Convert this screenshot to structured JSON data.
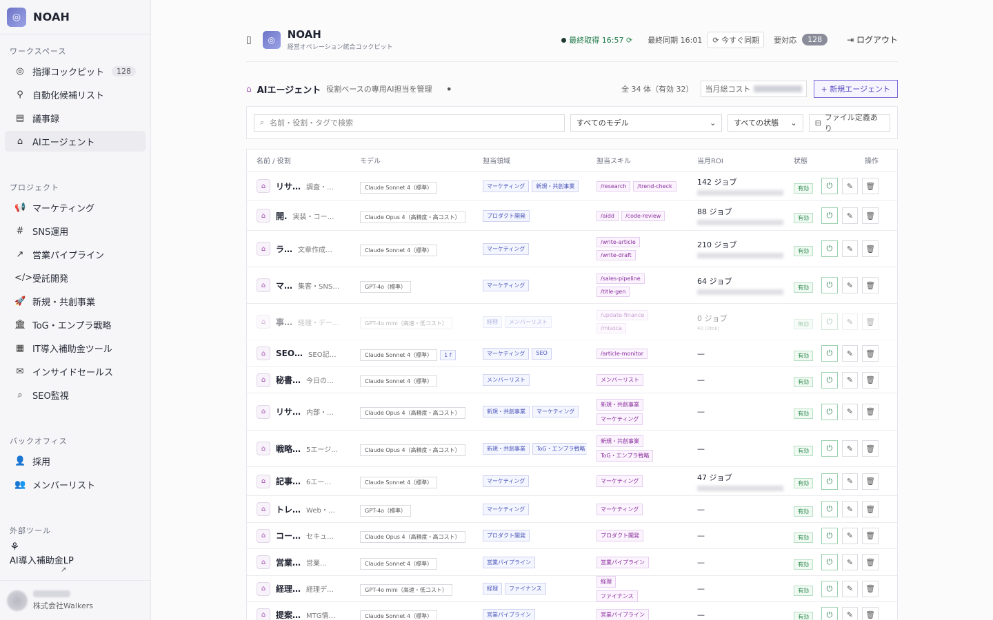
{
  "brand": "NOAH",
  "sidebar": {
    "workspace_label": "ワークスペース",
    "workspace": [
      {
        "label": "指揮コックピット",
        "icon": "◎",
        "count": "128"
      },
      {
        "label": "自動化候補リスト",
        "icon": "⚲",
        "count": ""
      },
      {
        "label": "議事録",
        "icon": "▤",
        "count": ""
      },
      {
        "label": "AIエージェント",
        "icon": "⌂",
        "count": ""
      }
    ],
    "project_label": "プロジェクト",
    "projects": [
      {
        "label": "マーケティング",
        "icon": "📢"
      },
      {
        "label": "SNS運用",
        "icon": "#"
      },
      {
        "label": "営業パイプライン",
        "icon": "↗"
      },
      {
        "label": "受託開発",
        "icon": "</>"
      },
      {
        "label": "新規・共創事業",
        "icon": "🚀"
      },
      {
        "label": "ToG・エンプラ戦略",
        "icon": "🏛"
      },
      {
        "label": "IT導入補助金ツール",
        "icon": "▦"
      },
      {
        "label": "インサイドセールス",
        "icon": "✉"
      },
      {
        "label": "SEO監視",
        "icon": "⌕"
      }
    ],
    "backoffice_label": "バックオフィス",
    "backoffice": [
      {
        "label": "採用",
        "icon": "👤"
      },
      {
        "label": "メンバーリスト",
        "icon": "👥"
      }
    ],
    "external_label": "外部ツール",
    "external_tool": "AI導入補助金LP",
    "user_org": "株式会社Walkers"
  },
  "top": {
    "title": "NOAH",
    "subtitle": "経営オペレーション統合コックピット",
    "last_fetch": "最終取得 16:57",
    "last_sync": "最終同期 16:01",
    "sync_now": "今すぐ同期",
    "needs_action": "要対応",
    "needs_count": "128",
    "logout": "ログアウト"
  },
  "section": {
    "title": "AIエージェント",
    "subtitle": "役割ベースの専用AI担当を管理",
    "total": "全 34 体（有効 32）",
    "cost_label": "当月総コスト",
    "new_button": "+ 新規エージェント"
  },
  "filters": {
    "search_placeholder": "名前・役割・タグで検索",
    "model_select": "すべてのモデル",
    "status_select": "すべての状態",
    "file_button": "ファイル定義あり"
  },
  "columns": [
    "名前 / 役割",
    "モデル",
    "担当領域",
    "担当スキル",
    "当月ROI",
    "状態",
    "操作"
  ],
  "rows": [
    {
      "name": "リサ…",
      "role": "調査・…",
      "model": "Claude Sonnet 4（標準）",
      "areas": [
        "マーケティング",
        "新規・共創事業"
      ],
      "skills": [
        "/research",
        "/trend-check"
      ],
      "skills_inline": true,
      "roi": "142 ジョブ",
      "roi_blur": true,
      "state": "有効",
      "height": 43
    },
    {
      "name": "開.",
      "role": "実装・コー…",
      "model": "Claude Opus 4（高精度・高コスト）",
      "areas": [
        "プロダクト開発"
      ],
      "skills": [
        "/aidd",
        "/code-review"
      ],
      "skills_inline": true,
      "roi": "88 ジョブ",
      "roi_blur": true,
      "state": "有効",
      "height": 43
    },
    {
      "name": "ラ…",
      "role": "文章作成…",
      "model": "Claude Sonnet 4（標準）",
      "areas": [
        "マーケティング"
      ],
      "skills": [
        "/write-article",
        "/write-draft"
      ],
      "roi": "210 ジョブ",
      "roi_blur": true,
      "state": "有効",
      "height": 53
    },
    {
      "name": "マ…",
      "role": "集客・SNS…",
      "model": "GPT-4o（標準）",
      "areas": [
        "マーケティング"
      ],
      "skills": [
        "/sales-pipeline",
        "/title-gen"
      ],
      "roi": "64 ジョブ",
      "roi_blur": true,
      "state": "有効",
      "height": 53
    },
    {
      "name": "事…",
      "role": "経理・デー…",
      "model": "GPT-4o mini（高速・低コスト）",
      "areas": [
        "経理",
        "メンバーリスト"
      ],
      "skills": [
        "/update-finance",
        "/misoca"
      ],
      "roi": "0 ジョブ",
      "roi_sub": "¥0 (0tok)",
      "state": "無効",
      "disabled": true,
      "height": 53
    },
    {
      "name": "SEO…",
      "role": "SEO記…",
      "model": "Claude Sonnet 4（標準）",
      "model_extra": "1 f",
      "areas": [
        "マーケティング",
        "SEO"
      ],
      "skills": [
        "/article-monitor"
      ],
      "roi": "—",
      "state": "有効",
      "height": 39
    },
    {
      "name": "秘書…",
      "role": "今日の…",
      "model": "Claude Sonnet 4（標準）",
      "areas": [
        "メンバーリスト"
      ],
      "skills": [
        "メンバーリスト"
      ],
      "roi": "—",
      "state": "有効",
      "height": 38
    },
    {
      "name": "リサ…",
      "role": "内部・…",
      "model": "Claude Opus 4（高精度・高コスト）",
      "areas": [
        "新規・共創事業",
        "マーケティング"
      ],
      "skills": [
        "新規・共創事業",
        "マーケティング"
      ],
      "roi": "—",
      "state": "有効",
      "height": 54
    },
    {
      "name": "戦略…",
      "role": "5エージ…",
      "model": "Claude Opus 4（高精度・高コスト）",
      "areas": [
        "新規・共創事業",
        "ToG・エンプラ戦略"
      ],
      "skills": [
        "新規・共創事業",
        "ToG・エンプラ戦略"
      ],
      "roi": "—",
      "state": "有効",
      "height": 53
    },
    {
      "name": "記事…",
      "role": "6エー…",
      "model": "Claude Sonnet 4（標準）",
      "areas": [
        "マーケティング"
      ],
      "skills": [
        "マーケティング"
      ],
      "roi": "47 ジョブ",
      "roi_blur": true,
      "state": "有効",
      "height": 42
    },
    {
      "name": "トレ…",
      "role": "Web・…",
      "model": "GPT-4o（標準）",
      "areas": [
        "マーケティング"
      ],
      "skills": [
        "マーケティング"
      ],
      "roi": "—",
      "state": "有効",
      "height": 39
    },
    {
      "name": "コー…",
      "role": "セキュ…",
      "model": "Claude Opus 4（高精度・高コスト）",
      "areas": [
        "プロダクト開発"
      ],
      "skills": [
        "プロダクト開発"
      ],
      "roi": "—",
      "state": "有効",
      "height": 38
    },
    {
      "name": "営業…",
      "role": "営業…",
      "model": "Claude Sonnet 4（標準）",
      "areas": [
        "営業パイプライン"
      ],
      "skills": [
        "営業パイプライン"
      ],
      "roi": "—",
      "state": "有効",
      "height": 39
    },
    {
      "name": "経理…",
      "role": "経理デ…",
      "model": "GPT-4o mini（高速・低コスト）",
      "areas": [
        "経理",
        "ファイナンス"
      ],
      "skills": [
        "経理",
        "ファイナンス"
      ],
      "roi": "—",
      "state": "有効",
      "height": 38
    },
    {
      "name": "提案…",
      "role": "MTG情…",
      "model": "Claude Sonnet 4（標準）",
      "areas": [
        "営業パイプライン"
      ],
      "skills": [
        "営業パイプライン"
      ],
      "roi": "—",
      "state": "有効",
      "height": 38
    }
  ]
}
